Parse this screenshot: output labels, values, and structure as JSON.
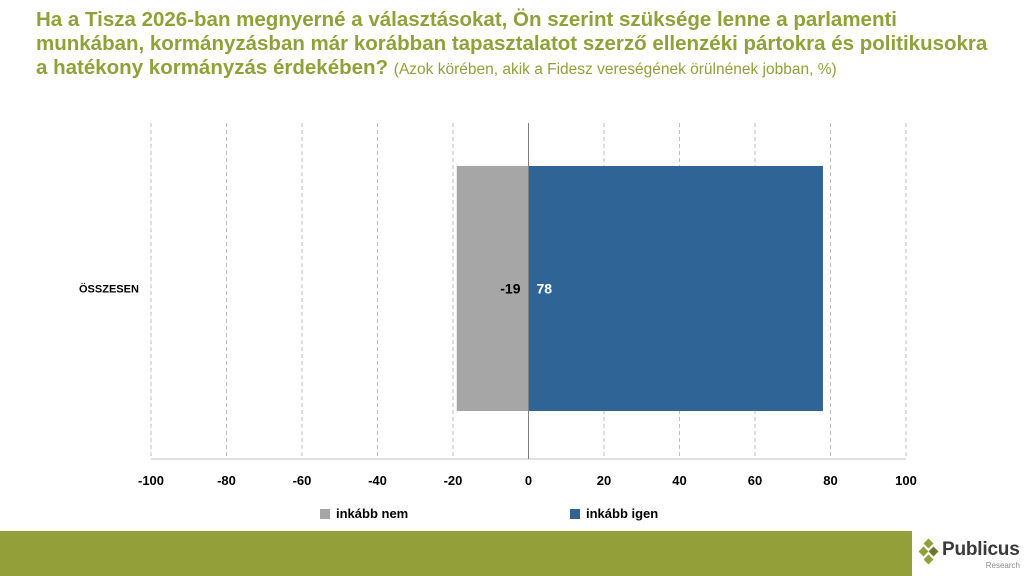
{
  "title": {
    "main": "Ha a Tisza 2026-ban megnyerné a választásokat, Ön szerint szüksége lenne a parlamenti munkában, kormányzásban már korábban tapasztalatot szerző ellenzéki pártokra és politikusokra a hatékony kormányzás érdekében?",
    "subtitle": "(Azok körében, akik a Fidesz vereségének örülnének jobban, %)"
  },
  "colors": {
    "title": "#8fa23a",
    "series_no": "#a6a6a6",
    "series_yes": "#2f6496",
    "footer": "#93a03a"
  },
  "chart_data": {
    "type": "bar",
    "orientation": "horizontal",
    "stacked": "diverging",
    "categories": [
      "ÖSSZESEN"
    ],
    "series": [
      {
        "name": "inkább nem",
        "values": [
          -19
        ]
      },
      {
        "name": "inkább igen",
        "values": [
          78
        ]
      }
    ],
    "data_labels": [
      {
        "series": "inkább nem",
        "text": "-19"
      },
      {
        "series": "inkább igen",
        "text": "78"
      }
    ],
    "xlim": [
      -100,
      100
    ],
    "xticks": [
      -100,
      -80,
      -60,
      -40,
      -20,
      0,
      20,
      40,
      60,
      80,
      100
    ],
    "xtick_labels": [
      "-100",
      "-80",
      "-60",
      "-40",
      "-20",
      "0",
      "20",
      "40",
      "60",
      "80",
      "100"
    ],
    "grid": "vertical dashed",
    "legend": "bottom"
  },
  "brand": {
    "name": "Publicus",
    "sub": "Research",
    "icon": "publicus-diamond-logo-icon"
  }
}
